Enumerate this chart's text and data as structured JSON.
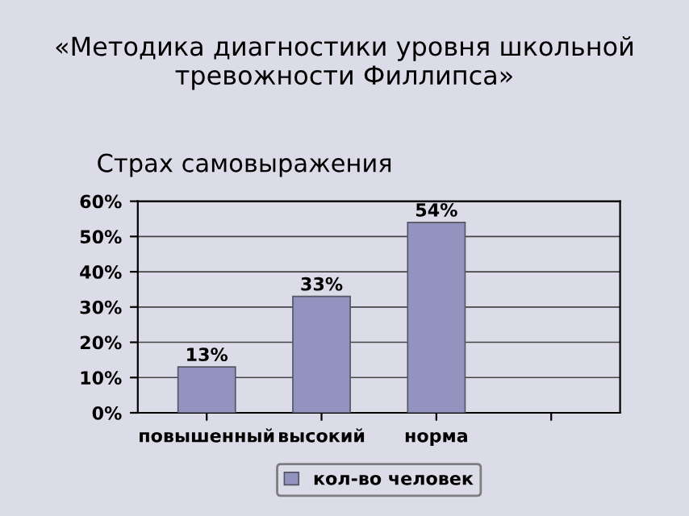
{
  "chart_data": {
    "type": "bar",
    "title": "«Методика диагностики уровня школьной тревожности Филлипса»",
    "subtitle": "Страх самовыражения",
    "categories": [
      "повышенный",
      "высокий",
      "норма",
      null
    ],
    "series": [
      {
        "name": "кол-во человек",
        "color": "#9393c0",
        "values": [
          13,
          33,
          54,
          null
        ],
        "value_labels": [
          "13%",
          "33%",
          "54%",
          null
        ]
      }
    ],
    "ylim": [
      0,
      60
    ],
    "yticks": [
      {
        "value": 0,
        "label": "0%"
      },
      {
        "value": 10,
        "label": "10%"
      },
      {
        "value": 20,
        "label": "20%"
      },
      {
        "value": 30,
        "label": "30%"
      },
      {
        "value": 40,
        "label": "40%"
      },
      {
        "value": 50,
        "label": "50%"
      },
      {
        "value": 60,
        "label": "60%"
      }
    ],
    "grid": "y",
    "legend": "bottom"
  }
}
